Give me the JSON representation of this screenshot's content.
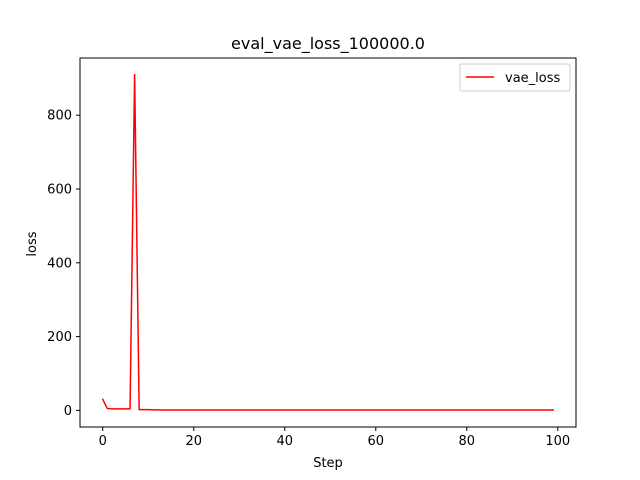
{
  "chart_data": {
    "type": "line",
    "title": "eval_vae_loss_100000.0",
    "xlabel": "Step",
    "ylabel": "loss",
    "xlim": [
      -5,
      104
    ],
    "ylim": [
      -45,
      955
    ],
    "xticks": [
      0,
      20,
      40,
      60,
      80,
      100
    ],
    "yticks": [
      0,
      200,
      400,
      600,
      800
    ],
    "xtick_labels": [
      "0",
      "20",
      "40",
      "60",
      "80",
      "100"
    ],
    "ytick_labels": [
      "0",
      "200",
      "400",
      "600",
      "800"
    ],
    "grid": false,
    "legend_position": "top-right",
    "series": [
      {
        "name": "vae_loss",
        "color": "#ff0000",
        "x": [
          0,
          1,
          2,
          3,
          4,
          5,
          6,
          7,
          8,
          9,
          10,
          11,
          12,
          13,
          14,
          15,
          20,
          30,
          40,
          50,
          60,
          70,
          80,
          90,
          99
        ],
        "y": [
          30,
          5,
          4,
          4,
          4,
          4,
          4,
          910,
          2,
          2,
          2,
          1.5,
          1.5,
          1,
          1,
          1,
          1,
          1,
          1,
          1,
          1,
          1,
          1,
          1,
          1
        ]
      }
    ]
  }
}
